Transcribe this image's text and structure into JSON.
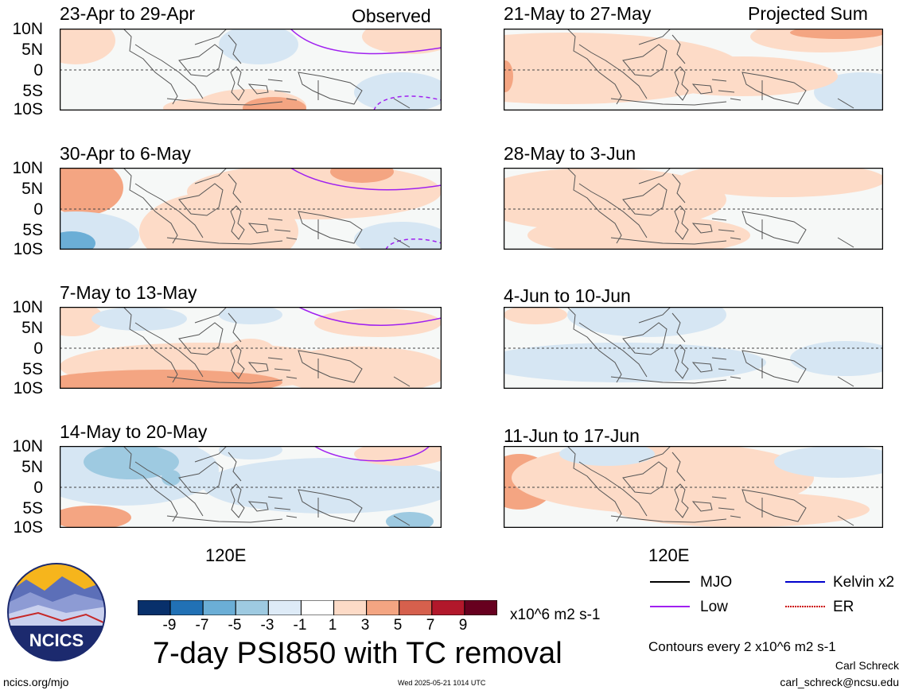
{
  "left_tag": "Observed",
  "right_tag": "Projected Sum",
  "lat_labels": [
    "10N",
    "5N",
    "0",
    "5S",
    "10S"
  ],
  "lon_label": "120E",
  "panels": [
    {
      "title": "23-Apr to 29-Apr",
      "column": "left",
      "row": 0
    },
    {
      "title": "30-Apr to 6-May",
      "column": "left",
      "row": 1
    },
    {
      "title": "7-May to 13-May",
      "column": "left",
      "row": 2
    },
    {
      "title": "14-May to 20-May",
      "column": "left",
      "row": 3
    },
    {
      "title": "21-May to 27-May",
      "column": "right",
      "row": 0
    },
    {
      "title": "28-May to 3-Jun",
      "column": "right",
      "row": 1
    },
    {
      "title": "4-Jun to 10-Jun",
      "column": "right",
      "row": 2
    },
    {
      "title": "11-Jun to 17-Jun",
      "column": "right",
      "row": 3
    }
  ],
  "colorbar": {
    "labels": [
      "-9",
      "-7",
      "-5",
      "-3",
      "-1",
      "1",
      "3",
      "5",
      "7",
      "9"
    ],
    "colors": [
      "#08306b",
      "#2171b5",
      "#6baed6",
      "#9ecae1",
      "#deebf7",
      "#ffffff",
      "#fddbc7",
      "#f4a582",
      "#d6604d",
      "#b2182b",
      "#67001f"
    ],
    "units": "x10^6 m2 s-1"
  },
  "title": "7-day PSI850 with TC removal",
  "legend": [
    {
      "label": "MJO",
      "color": "#000000",
      "style": "solid"
    },
    {
      "label": "Kelvin x2",
      "color": "#0000cc",
      "style": "solid"
    },
    {
      "label": "Low",
      "color": "#a020f0",
      "style": "solid"
    },
    {
      "label": "ER",
      "color": "#cc0000",
      "style": "dotted"
    }
  ],
  "contour_note": "Contours every 2 x10^6 m2 s-1",
  "author": "Carl Schreck",
  "email": "carl_schreck@ncsu.edu",
  "site": "ncics.org/mjo",
  "timestamp": "Wed 2025-05-21 1014 UTC",
  "logo_text": "NCICS"
}
